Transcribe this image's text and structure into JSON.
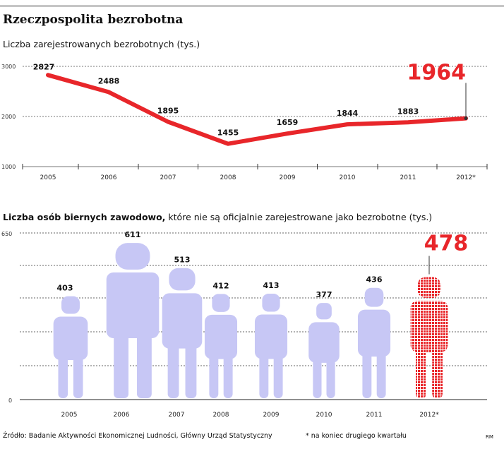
{
  "header": {
    "title": "Rzeczpospolita bezrobotna",
    "subtitle": "Liczba zarejestrowanych bezrobotnych (tys.)",
    "subtitle2_bold": "Liczba osób biernych zawodowo,",
    "subtitle2_rest": " które nie są oficjalnie zarejestrowane jako bezrobotne (tys.)"
  },
  "chart_data": [
    {
      "type": "line",
      "categories": [
        "2005",
        "2006",
        "2007",
        "2008",
        "2009",
        "2010",
        "2011",
        "2012*"
      ],
      "values": [
        2827,
        2488,
        1895,
        1455,
        1659,
        1844,
        1883,
        1964
      ],
      "ylim": [
        1000,
        3000
      ],
      "yticks": [
        "3000",
        "2000",
        "1000"
      ],
      "highlight_last": true,
      "colors": {
        "line": "#e8262a",
        "grid": "#777777"
      }
    },
    {
      "type": "bar",
      "style": "pictogram-person",
      "categories": [
        "2005",
        "2006",
        "2007",
        "2008",
        "2009",
        "2010",
        "2011",
        "2012*"
      ],
      "values": [
        403,
        611,
        513,
        412,
        413,
        377,
        436,
        478
      ],
      "ylim": [
        0,
        650
      ],
      "yticks": [
        "650",
        "0"
      ],
      "highlight_last": true,
      "colors": {
        "figure": "#c7c7f5",
        "highlight": "#e8262a"
      }
    }
  ],
  "footer": {
    "source": "Źródło: Badanie Aktywności Ekonomicznej Ludności, Główny Urząd Statystyczny",
    "footnote": "* na koniec drugiego kwartału",
    "credit": "RM"
  }
}
